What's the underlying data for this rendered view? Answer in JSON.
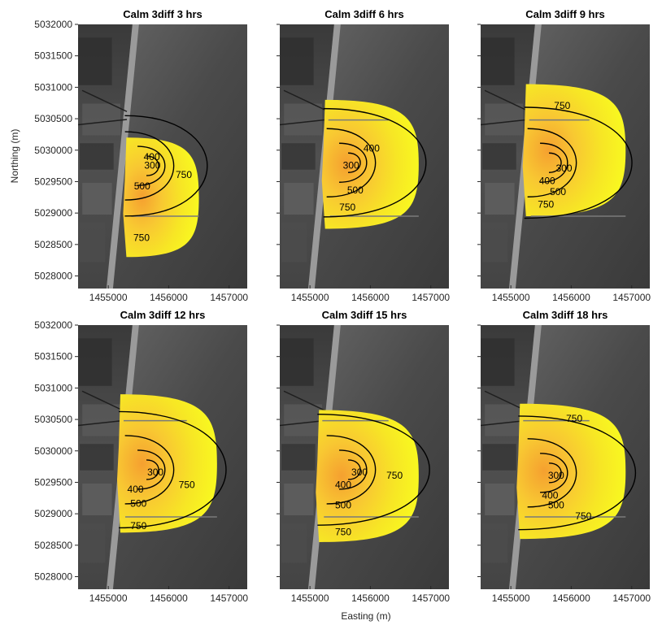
{
  "figure": {
    "xlabel": "Easting (m)",
    "ylabel": "Northing (m)"
  },
  "chart_data": [
    {
      "type": "contour",
      "title": "Calm 3diff 3 hrs",
      "xlim": [
        1454500,
        1457300
      ],
      "ylim": [
        5027800,
        5032000
      ],
      "xticks": [
        1455000,
        1456000,
        1457000
      ],
      "yticks": [
        5028000,
        5028500,
        5029000,
        5029500,
        5030000,
        5030500,
        5031000,
        5031500,
        5032000
      ],
      "plume": {
        "x_start": 1455300,
        "y_top": 5030200,
        "y_bottom": 5028300,
        "x_max": 1456500,
        "center": [
          1455750,
          5029750
        ]
      },
      "contour_levels": [
        300,
        400,
        500,
        750
      ],
      "contour_labels": [
        {
          "text": "300",
          "x": 1455730,
          "y": 5029750
        },
        {
          "text": "400",
          "x": 1455720,
          "y": 5029880
        },
        {
          "text": "500",
          "x": 1455560,
          "y": 5029420
        },
        {
          "text": "750",
          "x": 1456250,
          "y": 5029600
        },
        {
          "text": "750",
          "x": 1455550,
          "y": 5028600
        }
      ]
    },
    {
      "type": "contour",
      "title": "Calm 3diff 6 hrs",
      "xlim": [
        1454500,
        1457300
      ],
      "ylim": [
        5027800,
        5032000
      ],
      "xticks": [
        1455000,
        1456000,
        1457000
      ],
      "yticks": [
        5028000,
        5028500,
        5029000,
        5029500,
        5030000,
        5030500,
        5031000,
        5031500,
        5032000
      ],
      "plume": {
        "x_start": 1455250,
        "y_top": 5030800,
        "y_bottom": 5028750,
        "x_max": 1456800,
        "center": [
          1455750,
          5029800
        ]
      },
      "contour_levels": [
        300,
        400,
        500,
        750
      ],
      "contour_labels": [
        {
          "text": "300",
          "x": 1455680,
          "y": 5029750
        },
        {
          "text": "400",
          "x": 1456020,
          "y": 5030020
        },
        {
          "text": "500",
          "x": 1455750,
          "y": 5029350
        },
        {
          "text": "750",
          "x": 1455620,
          "y": 5029080
        }
      ]
    },
    {
      "type": "contour",
      "title": "Calm 3diff 9 hrs",
      "xlim": [
        1454500,
        1457300
      ],
      "ylim": [
        5027800,
        5032000
      ],
      "xticks": [
        1455000,
        1456000,
        1457000
      ],
      "yticks": [
        5028000,
        5028500,
        5029000,
        5029500,
        5030000,
        5030500,
        5031000,
        5031500,
        5032000
      ],
      "plume": {
        "x_start": 1455250,
        "y_top": 5031050,
        "y_bottom": 5028950,
        "x_max": 1456900,
        "center": [
          1455750,
          5029800
        ]
      },
      "contour_levels": [
        300,
        400,
        500,
        750
      ],
      "contour_labels": [
        {
          "text": "750",
          "x": 1455850,
          "y": 5030700
        },
        {
          "text": "300",
          "x": 1455880,
          "y": 5029700
        },
        {
          "text": "400",
          "x": 1455600,
          "y": 5029500
        },
        {
          "text": "500",
          "x": 1455780,
          "y": 5029330
        },
        {
          "text": "750",
          "x": 1455580,
          "y": 5029130
        }
      ]
    },
    {
      "type": "contour",
      "title": "Calm 3diff 12 hrs",
      "xlim": [
        1454500,
        1457300
      ],
      "ylim": [
        5027800,
        5032000
      ],
      "xticks": [
        1455000,
        1456000,
        1457000
      ],
      "yticks": [
        5028000,
        5028500,
        5029000,
        5029500,
        5030000,
        5030500,
        5031000,
        5031500,
        5032000
      ],
      "plume": {
        "x_start": 1455200,
        "y_top": 5030900,
        "y_bottom": 5028700,
        "x_max": 1456800,
        "center": [
          1455750,
          5029700
        ]
      },
      "contour_levels": [
        300,
        400,
        500,
        750
      ],
      "contour_labels": [
        {
          "text": "300",
          "x": 1455780,
          "y": 5029650
        },
        {
          "text": "400",
          "x": 1455450,
          "y": 5029380
        },
        {
          "text": "500",
          "x": 1455500,
          "y": 5029150
        },
        {
          "text": "750",
          "x": 1456300,
          "y": 5029450
        },
        {
          "text": "750",
          "x": 1455500,
          "y": 5028800
        }
      ]
    },
    {
      "type": "contour",
      "title": "Calm 3diff 15 hrs",
      "xlim": [
        1454500,
        1457300
      ],
      "ylim": [
        5027800,
        5032000
      ],
      "xticks": [
        1455000,
        1456000,
        1457000
      ],
      "yticks": [
        5028000,
        5028500,
        5029000,
        5029500,
        5030000,
        5030500,
        5031000,
        5031500,
        5032000
      ],
      "plume": {
        "x_start": 1455150,
        "y_top": 5030650,
        "y_bottom": 5028550,
        "x_max": 1456800,
        "center": [
          1455750,
          5029700
        ]
      },
      "contour_levels": [
        300,
        400,
        500,
        750
      ],
      "contour_labels": [
        {
          "text": "300",
          "x": 1455820,
          "y": 5029650
        },
        {
          "text": "400",
          "x": 1455550,
          "y": 5029450
        },
        {
          "text": "500",
          "x": 1455550,
          "y": 5029130
        },
        {
          "text": "750",
          "x": 1456400,
          "y": 5029600
        },
        {
          "text": "750",
          "x": 1455550,
          "y": 5028700
        }
      ]
    },
    {
      "type": "contour",
      "title": "Calm 3diff 18 hrs",
      "xlim": [
        1454500,
        1457300
      ],
      "ylim": [
        5027800,
        5032000
      ],
      "xticks": [
        1455000,
        1456000,
        1457000
      ],
      "yticks": [
        5028000,
        5028500,
        5029000,
        5029500,
        5030000,
        5030500,
        5031000,
        5031500,
        5032000
      ],
      "plume": {
        "x_start": 1455150,
        "y_top": 5030750,
        "y_bottom": 5028600,
        "x_max": 1456900,
        "center": [
          1455750,
          5029650
        ]
      },
      "contour_levels": [
        300,
        400,
        500,
        750
      ],
      "contour_labels": [
        {
          "text": "750",
          "x": 1456050,
          "y": 5030500
        },
        {
          "text": "300",
          "x": 1455750,
          "y": 5029600
        },
        {
          "text": "400",
          "x": 1455650,
          "y": 5029280
        },
        {
          "text": "500",
          "x": 1455750,
          "y": 5029130
        },
        {
          "text": "750",
          "x": 1456200,
          "y": 5028950
        }
      ]
    }
  ]
}
